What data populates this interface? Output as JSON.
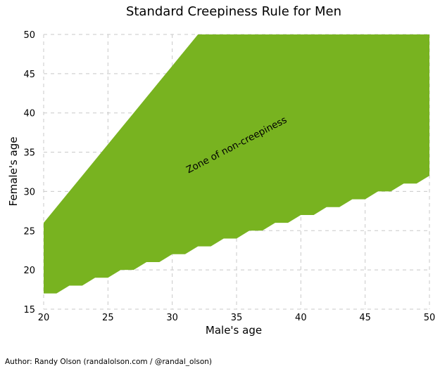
{
  "chart_data": {
    "type": "area",
    "title": "Standard Creepiness Rule for Men",
    "xlabel": "Male's age",
    "ylabel": "Female's age",
    "xlim": [
      20,
      50
    ],
    "ylim": [
      15,
      50
    ],
    "xticks": [
      20,
      25,
      30,
      35,
      40,
      45,
      50
    ],
    "yticks": [
      15,
      20,
      25,
      30,
      35,
      40,
      45,
      50
    ],
    "grid": true,
    "fill_color": "#78b320",
    "annotation": "Zone of non-creepiness",
    "x": [
      20,
      21,
      22,
      23,
      24,
      25,
      26,
      27,
      28,
      29,
      30,
      31,
      32,
      33,
      34,
      35,
      36,
      37,
      38,
      39,
      40,
      41,
      42,
      43,
      44,
      45,
      46,
      47,
      48,
      49,
      50
    ],
    "lower": [
      17,
      17,
      18,
      18,
      19,
      19,
      20,
      20,
      21,
      21,
      22,
      22,
      23,
      23,
      24,
      24,
      25,
      25,
      26,
      26,
      27,
      27,
      28,
      28,
      29,
      29,
      30,
      30,
      31,
      31,
      32
    ],
    "upper": [
      26,
      28,
      30,
      32,
      34,
      36,
      38,
      40,
      42,
      44,
      46,
      48,
      50,
      50,
      50,
      50,
      50,
      50,
      50,
      50,
      50,
      50,
      50,
      50,
      50,
      50,
      50,
      50,
      50,
      50,
      50
    ]
  },
  "footer": {
    "author": "Author: Randy Olson (randalolson.com / @randal_olson)"
  }
}
